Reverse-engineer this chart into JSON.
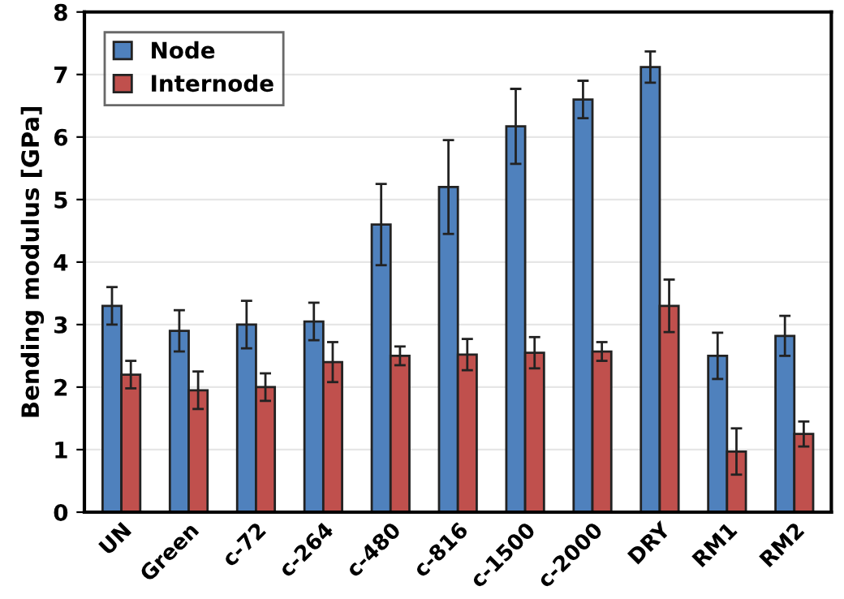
{
  "chart_data": {
    "type": "bar",
    "ylabel": "Bending modulus [GPa]",
    "categories": [
      "UN",
      "Green",
      "c-72",
      "c-264",
      "c-480",
      "c-816",
      "c-1500",
      "c-2000",
      "DRY",
      "RM1",
      "RM2"
    ],
    "series": [
      {
        "name": "Node",
        "color": "#4f81bd",
        "values": [
          3.3,
          2.9,
          3.0,
          3.05,
          4.6,
          5.2,
          6.17,
          6.6,
          7.12,
          2.5,
          2.82
        ],
        "errors": [
          0.3,
          0.33,
          0.38,
          0.3,
          0.65,
          0.75,
          0.6,
          0.3,
          0.25,
          0.37,
          0.32
        ]
      },
      {
        "name": "Internode",
        "color": "#c0504d",
        "values": [
          2.2,
          1.95,
          2.0,
          2.4,
          2.5,
          2.52,
          2.55,
          2.57,
          3.3,
          0.97,
          1.25
        ],
        "errors": [
          0.22,
          0.3,
          0.22,
          0.32,
          0.15,
          0.25,
          0.25,
          0.15,
          0.42,
          0.37,
          0.2
        ]
      }
    ],
    "ylim": [
      0,
      8
    ],
    "yticks": [
      0,
      1,
      2,
      3,
      4,
      5,
      6,
      7,
      8
    ],
    "grid": "y",
    "legend": "top left"
  }
}
